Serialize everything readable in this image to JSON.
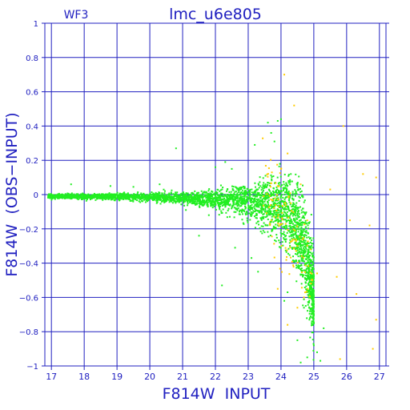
{
  "chart_data": {
    "type": "scatter",
    "title": "lmc_u6e805",
    "panel_label": "WF3",
    "xlabel": "F814W  INPUT",
    "ylabel": "F814W  (OBS−INPUT)",
    "xlim": [
      16.8,
      27.2
    ],
    "ylim": [
      -1,
      1
    ],
    "xticks": [
      "17",
      "18",
      "19",
      "20",
      "21",
      "22",
      "23",
      "24",
      "25",
      "26",
      "27"
    ],
    "yticks": [
      "1",
      "0.8",
      "0.6",
      "0.4",
      "0.2",
      "0",
      "−0.2",
      "−0.4",
      "−0.6",
      "−0.8",
      "−1"
    ],
    "grid": true,
    "colors": {
      "axes": "#2020c0",
      "grid": "#2020c0",
      "main_points": "#22ee22",
      "faint_points": "#ffcc00"
    },
    "series": [
      {
        "color_key": "main_points",
        "envelope": [
          [
            16.9,
            -0.01,
            0.02
          ],
          [
            18.0,
            -0.01,
            0.02
          ],
          [
            19.0,
            -0.01,
            0.025
          ],
          [
            20.0,
            -0.015,
            0.03
          ],
          [
            21.0,
            -0.02,
            0.04
          ],
          [
            22.0,
            -0.03,
            0.07
          ],
          [
            23.0,
            -0.04,
            0.12
          ],
          [
            23.5,
            -0.05,
            0.18
          ],
          [
            24.0,
            -0.08,
            0.25
          ],
          [
            24.4,
            -0.15,
            0.3
          ],
          [
            24.7,
            -0.3,
            0.35
          ],
          [
            25.0,
            -0.6,
            0.3
          ]
        ],
        "count": 3400,
        "points": [
          [
            20.8,
            0.27
          ],
          [
            22.0,
            0.16
          ],
          [
            22.3,
            0.19
          ],
          [
            23.6,
            0.42
          ],
          [
            23.9,
            0.43
          ],
          [
            24.0,
            0.44
          ],
          [
            23.7,
            0.36
          ],
          [
            21.5,
            -0.24
          ],
          [
            22.6,
            -0.31
          ],
          [
            23.3,
            -0.45
          ],
          [
            22.2,
            -0.53
          ],
          [
            24.2,
            -0.57
          ],
          [
            24.7,
            -0.66
          ],
          [
            24.9,
            -0.71
          ],
          [
            25.0,
            -0.88
          ],
          [
            25.1,
            -0.92
          ],
          [
            24.6,
            -0.98
          ],
          [
            25.2,
            -0.97
          ],
          [
            23.1,
            -0.37
          ],
          [
            24.1,
            -0.62
          ],
          [
            24.5,
            -0.85
          ],
          [
            24.8,
            -0.95
          ],
          [
            17.6,
            0.06
          ],
          [
            18.8,
            0.05
          ],
          [
            19.5,
            0.045
          ],
          [
            20.3,
            0.06
          ],
          [
            21.1,
            -0.09
          ],
          [
            21.8,
            -0.12
          ],
          [
            22.5,
            0.15
          ],
          [
            23.2,
            0.29
          ],
          [
            23.8,
            0.31
          ],
          [
            24.3,
            0.12
          ],
          [
            24.9,
            -0.55
          ],
          [
            25.3,
            -0.78
          ],
          [
            23.5,
            -0.22
          ]
        ]
      },
      {
        "color_key": "faint_points",
        "count": 110,
        "points": [
          [
            24.1,
            0.7
          ],
          [
            24.4,
            0.52
          ],
          [
            25.9,
            0.4
          ],
          [
            26.5,
            0.12
          ],
          [
            26.9,
            0.1
          ],
          [
            24.2,
            0.24
          ],
          [
            24.6,
            0.06
          ],
          [
            25.5,
            0.03
          ],
          [
            26.1,
            -0.15
          ],
          [
            26.7,
            -0.18
          ],
          [
            24.9,
            -0.32
          ],
          [
            25.7,
            -0.48
          ],
          [
            26.3,
            -0.58
          ],
          [
            24.5,
            -0.66
          ],
          [
            24.2,
            -0.76
          ],
          [
            26.9,
            -0.73
          ],
          [
            26.8,
            -0.9
          ],
          [
            25.8,
            -0.96
          ],
          [
            23.9,
            -0.55
          ],
          [
            24.8,
            -0.15
          ],
          [
            23.9,
            0.05
          ],
          [
            24.0,
            0.15
          ],
          [
            24.3,
            -0.05
          ],
          [
            25.1,
            -0.46
          ],
          [
            24.7,
            -0.6
          ]
        ]
      }
    ]
  }
}
